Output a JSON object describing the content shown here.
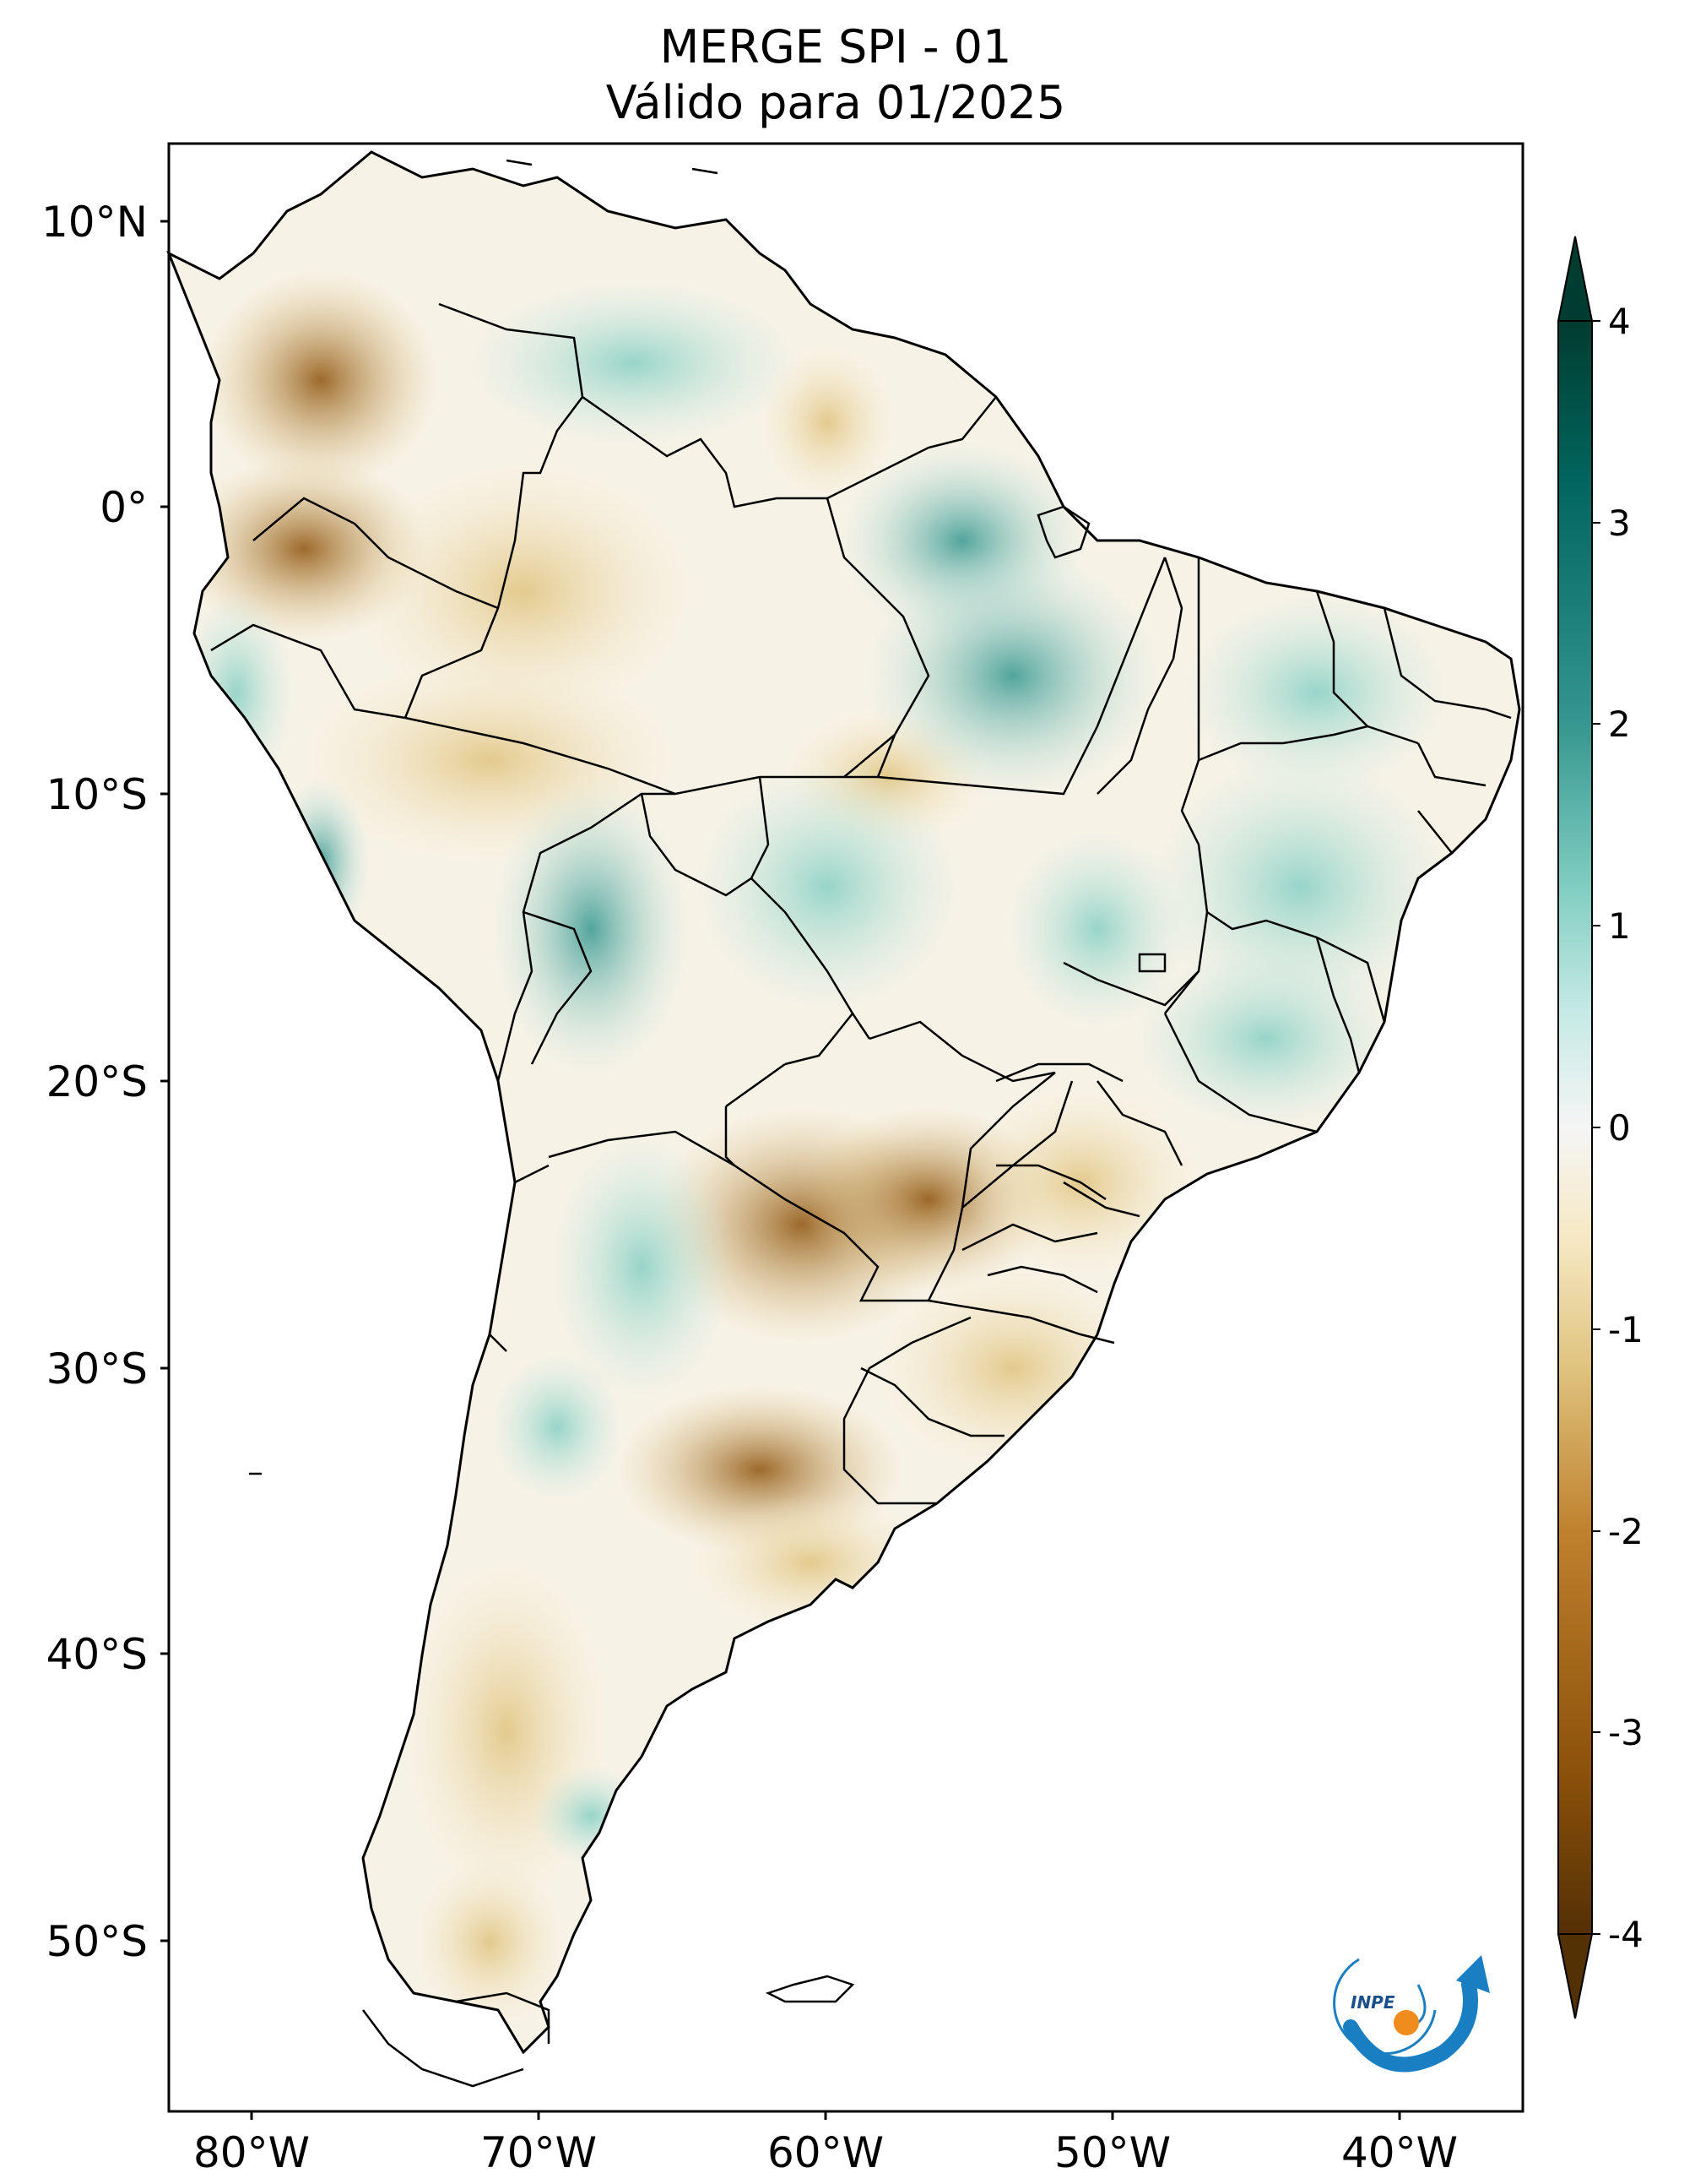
{
  "title": {
    "line1": "MERGE   SPI - 01",
    "line2": "Válido para 01/2025"
  },
  "map": {
    "lat_labels": [
      "10°N",
      "0°",
      "10°S",
      "20°S",
      "30°S",
      "40°S",
      "50°S"
    ],
    "lat_values": [
      10,
      0,
      -10,
      -20,
      -30,
      -40,
      -50
    ],
    "lon_labels": [
      "80°W",
      "70°W",
      "60°W",
      "50°W",
      "40°W"
    ],
    "lon_values": [
      -80,
      -70,
      -60,
      -50,
      -40
    ],
    "extent": {
      "lon_min": -81.5,
      "lon_max": -34.5,
      "lat_min": -56,
      "lat_max": 12.5
    }
  },
  "colorbar": {
    "variable": "SPI",
    "min": -4,
    "max": 4,
    "tick_labels": [
      "4",
      "3",
      "2",
      "1",
      "0",
      "-1",
      "-2",
      "-3",
      "-4"
    ],
    "tick_values": [
      4,
      3,
      2,
      1,
      0,
      -1,
      -2,
      -3,
      -4
    ],
    "colors": {
      "dry_extreme": "#543005",
      "dry_strong": "#8c510a",
      "dry_moderate": "#bf812d",
      "dry_mild": "#dfc27d",
      "dry_light": "#f6e8c3",
      "neutral": "#f5f5f5",
      "wet_light": "#c7eae5",
      "wet_mild": "#80cdc1",
      "wet_moderate": "#35978f",
      "wet_strong": "#01665e",
      "wet_extreme": "#003c30"
    }
  },
  "logo": {
    "text": "INPE",
    "colors": {
      "arc": "#1a7fc2",
      "sun": "#f08c1e"
    }
  }
}
